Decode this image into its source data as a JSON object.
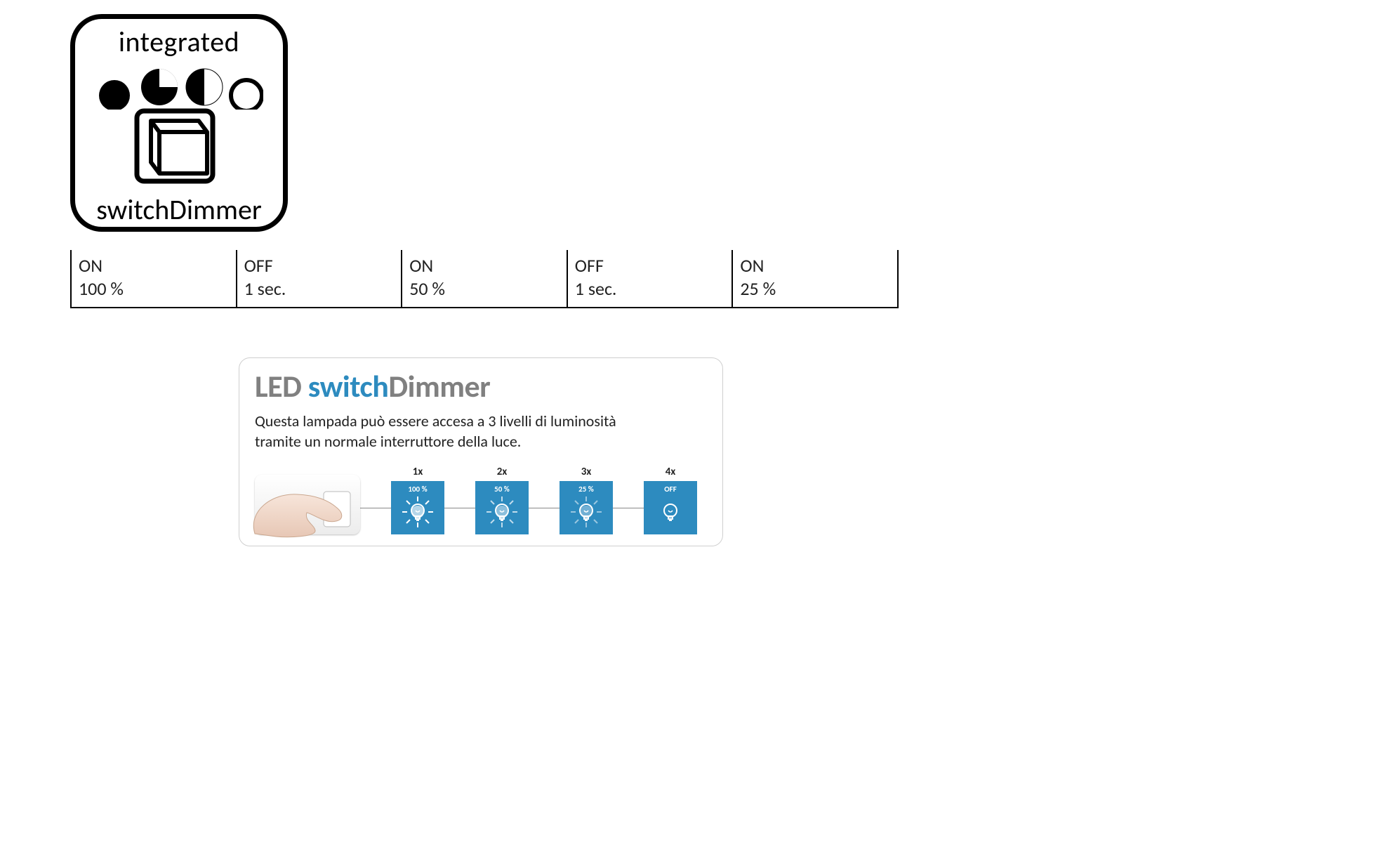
{
  "badge": {
    "top_label": "integrated",
    "bottom_label": "switchDimmer",
    "stroke": "#000000",
    "corner_radius": 45,
    "border_width": 7
  },
  "state_table": {
    "columns": [
      {
        "state": "ON",
        "value": "100 %"
      },
      {
        "state": "OFF",
        "value": "1 sec."
      },
      {
        "state": "ON",
        "value": "50 %"
      },
      {
        "state": "OFF",
        "value": "1 sec."
      },
      {
        "state": "ON",
        "value": "25 %"
      }
    ],
    "font_size": 26,
    "border_color": "#000000"
  },
  "info_card": {
    "title_led": "LED ",
    "title_switch": "switch",
    "title_dimmer": "Dimmer",
    "title_led_color": "#808080",
    "title_switch_color": "#2d8bbf",
    "title_dimmer_color": "#808080",
    "description_line1": "Questa lampada può essere accesa a 3 livelli di luminosità",
    "description_line2": "tramite un normale interruttore della luce.",
    "border_color": "#cfcfcf",
    "steps": [
      {
        "count": "1x",
        "label": "100 %",
        "bg": "#2d8bbf",
        "intensity": 1.0
      },
      {
        "count": "2x",
        "label": "50 %",
        "bg": "#2d8bbf",
        "intensity": 0.6
      },
      {
        "count": "3x",
        "label": "25 %",
        "bg": "#2d8bbf",
        "intensity": 0.35
      },
      {
        "count": "4x",
        "label": "OFF",
        "bg": "#2d8bbf",
        "intensity": 0.0
      }
    ]
  }
}
